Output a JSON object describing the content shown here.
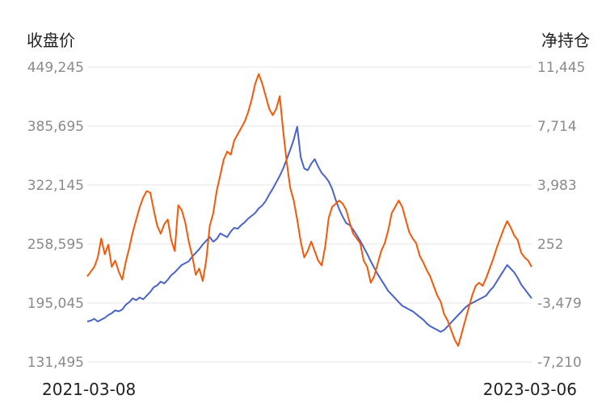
{
  "chart_data": {
    "type": "line",
    "left_axis_title": "收盘价",
    "right_axis_title": "净持仓",
    "left_ticks": [
      "449,245",
      "385,695",
      "322,145",
      "258,595",
      "195,045",
      "131,495"
    ],
    "right_ticks": [
      "11,445",
      "7,714",
      "3,983",
      "252",
      "-3,479",
      "-7,210"
    ],
    "x_start_label": "2021-03-08",
    "x_end_label": "2023-03-06",
    "left_range": [
      131495,
      449245
    ],
    "right_range": [
      -7210,
      11445
    ],
    "grid": true,
    "series": [
      {
        "axis": "left",
        "color": "#4a63c8",
        "values": [
          175000,
          176000,
          178000,
          175000,
          177000,
          179000,
          182000,
          184000,
          187000,
          186000,
          188000,
          193000,
          196000,
          200000,
          198000,
          201000,
          199000,
          203000,
          207000,
          212000,
          214000,
          218000,
          216000,
          220000,
          225000,
          228000,
          232000,
          236000,
          238000,
          240000,
          245000,
          249000,
          253000,
          258000,
          262000,
          266000,
          261000,
          264000,
          270000,
          268000,
          266000,
          272000,
          276000,
          275000,
          279000,
          282000,
          286000,
          289000,
          292000,
          297000,
          300000,
          305000,
          312000,
          318000,
          325000,
          332000,
          340000,
          350000,
          360000,
          371000,
          385000,
          352000,
          340000,
          338000,
          345000,
          350000,
          342000,
          335000,
          331000,
          326000,
          318000,
          306000,
          296000,
          288000,
          281000,
          279000,
          274000,
          268000,
          262000,
          255000,
          248000,
          240000,
          233000,
          226000,
          220000,
          214000,
          208000,
          204000,
          200000,
          196000,
          192000,
          190000,
          188000,
          186000,
          183000,
          180000,
          177000,
          173000,
          170000,
          168000,
          166000,
          164000,
          166000,
          170000,
          174000,
          178000,
          182000,
          186000,
          190000,
          193000,
          195000,
          197000,
          199000,
          201000,
          203000,
          208000,
          212000,
          218000,
          224000,
          230000,
          236000,
          232000,
          228000,
          222000,
          215000,
          210000,
          205000,
          200000
        ]
      },
      {
        "axis": "right",
        "color": "#f05a0a",
        "values": [
          -1800,
          -1500,
          -1200,
          -600,
          600,
          -400,
          200,
          -1200,
          -800,
          -1500,
          -2000,
          -900,
          0,
          1000,
          1800,
          2600,
          3200,
          3600,
          3500,
          2400,
          1400,
          900,
          1500,
          1800,
          500,
          -200,
          2700,
          2400,
          1600,
          400,
          -500,
          -1700,
          -1300,
          -2100,
          -800,
          1400,
          2200,
          3600,
          4600,
          5600,
          6100,
          5900,
          6800,
          7200,
          7600,
          8000,
          8600,
          9400,
          10400,
          11000,
          10400,
          9600,
          8800,
          8400,
          8800,
          9600,
          7400,
          5400,
          3800,
          3000,
          1800,
          400,
          -600,
          -200,
          400,
          -200,
          -800,
          -1100,
          100,
          1900,
          2600,
          2800,
          3000,
          2800,
          2400,
          1600,
          900,
          600,
          300,
          -800,
          -1200,
          -2200,
          -1800,
          -1000,
          -200,
          300,
          1100,
          2200,
          2600,
          3000,
          2600,
          1800,
          1000,
          600,
          300,
          -500,
          -900,
          -1400,
          -1800,
          -2400,
          -3000,
          -3400,
          -4200,
          -4600,
          -5200,
          -5800,
          -6200,
          -5400,
          -4600,
          -3800,
          -3000,
          -2400,
          -2200,
          -2400,
          -1900,
          -1300,
          -700,
          0,
          600,
          1200,
          1700,
          1300,
          800,
          500,
          -300,
          -600,
          -800,
          -1200
        ]
      }
    ]
  }
}
